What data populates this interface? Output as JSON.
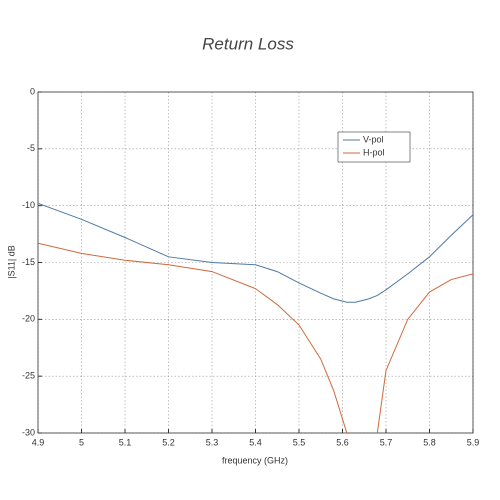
{
  "chart_data": {
    "type": "line",
    "title": "Return Loss",
    "x_label": "frequency (GHz)",
    "y_label": "|S11| dB",
    "xlim": [
      4.9,
      5.9
    ],
    "xticks": [
      4.9,
      5,
      5.1,
      5.2,
      5.3,
      5.4,
      5.5,
      5.6,
      5.7,
      5.8,
      5.9
    ],
    "ylim": [
      -30,
      0
    ],
    "yticks": [
      0,
      -5,
      -10,
      -15,
      -20,
      -25,
      -30
    ],
    "grid": true,
    "legend": "upper right",
    "x": [
      4.9,
      5.0,
      5.1,
      5.2,
      5.3,
      5.4,
      5.45,
      5.5,
      5.55,
      5.58,
      5.61,
      5.63,
      5.66,
      5.68,
      5.7,
      5.75,
      5.8,
      5.85,
      5.9
    ],
    "series": [
      {
        "name": "V-pol",
        "color": "#4f7aa6",
        "values": [
          -9.8,
          -11.2,
          -12.8,
          -14.5,
          -15.0,
          -15.2,
          -15.8,
          -16.8,
          -17.7,
          -18.2,
          -18.5,
          -18.5,
          -18.2,
          -17.9,
          -17.4,
          -16.0,
          -14.5,
          -12.6,
          -10.8
        ]
      },
      {
        "name": "H-pol",
        "color": "#d0693c",
        "values": [
          -13.3,
          -14.2,
          -14.8,
          -15.2,
          -15.8,
          -17.3,
          -18.7,
          -20.5,
          -23.5,
          -26.3,
          -30,
          null,
          null,
          -30,
          -24.5,
          -20.0,
          -17.6,
          -16.5,
          -16.0
        ]
      }
    ]
  }
}
